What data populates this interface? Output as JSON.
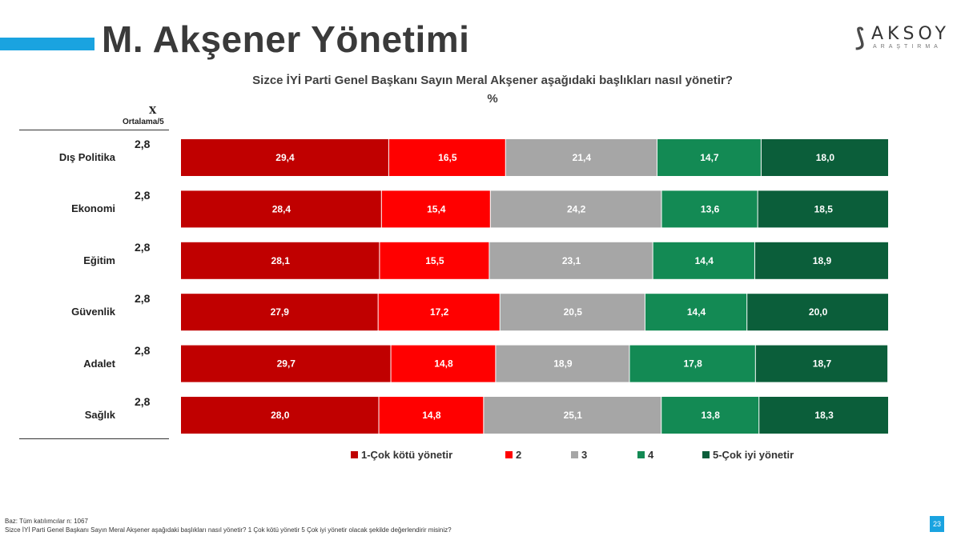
{
  "page": {
    "title": "M. Akşener Yönetimi",
    "question": "Sizce İYİ Parti Genel Başkanı Sayın Meral Akşener aşağıdaki başlıkları nasıl yönetir?",
    "unit": "%",
    "avg_symbol": "X",
    "avg_label": "Ortalama/5",
    "logo_name": "AKSOY",
    "logo_sub": "ARAŞTIRMA",
    "footnote_base": "Baz: Tüm katılımcılar n: 1067",
    "footnote_question": "Sizce İYİ Parti Genel Başkanı Sayın Meral Akşener aşağıdaki başlıkları nasıl yönetir? 1 Çok kötü yönetir 5 Çok iyi yönetir olacak şekilde değerlendirir misiniz?",
    "page_number": "23",
    "accent_color": "#1aa3e0"
  },
  "chart_data": {
    "type": "bar",
    "orientation": "horizontal",
    "stacked": true,
    "categories": [
      "Dış Politika",
      "Ekonomi",
      "Eğitim",
      "Güvenlik",
      "Adalet",
      "Sağlık"
    ],
    "averages": [
      "2,8",
      "2,8",
      "2,8",
      "2,8",
      "2,8",
      "2,8"
    ],
    "series": [
      {
        "name": "1-Çok kötü yönetir",
        "color": "#c00000",
        "values": [
          29.4,
          28.4,
          28.1,
          27.9,
          29.7,
          28.0
        ]
      },
      {
        "name": "2",
        "color": "#ff0000",
        "values": [
          16.5,
          15.4,
          15.5,
          17.2,
          14.8,
          14.8
        ]
      },
      {
        "name": "3",
        "color": "#a6a6a6",
        "values": [
          21.4,
          24.2,
          23.1,
          20.5,
          18.9,
          25.1
        ]
      },
      {
        "name": "4",
        "color": "#138a54",
        "values": [
          14.7,
          13.6,
          14.4,
          14.4,
          17.8,
          13.8
        ]
      },
      {
        "name": "5-Çok iyi yönetir",
        "color": "#0b5e3a",
        "values": [
          18.0,
          18.5,
          18.9,
          20.0,
          18.7,
          18.3
        ]
      }
    ],
    "xlim": [
      0,
      100
    ],
    "legend_position": "bottom",
    "grid": false
  }
}
